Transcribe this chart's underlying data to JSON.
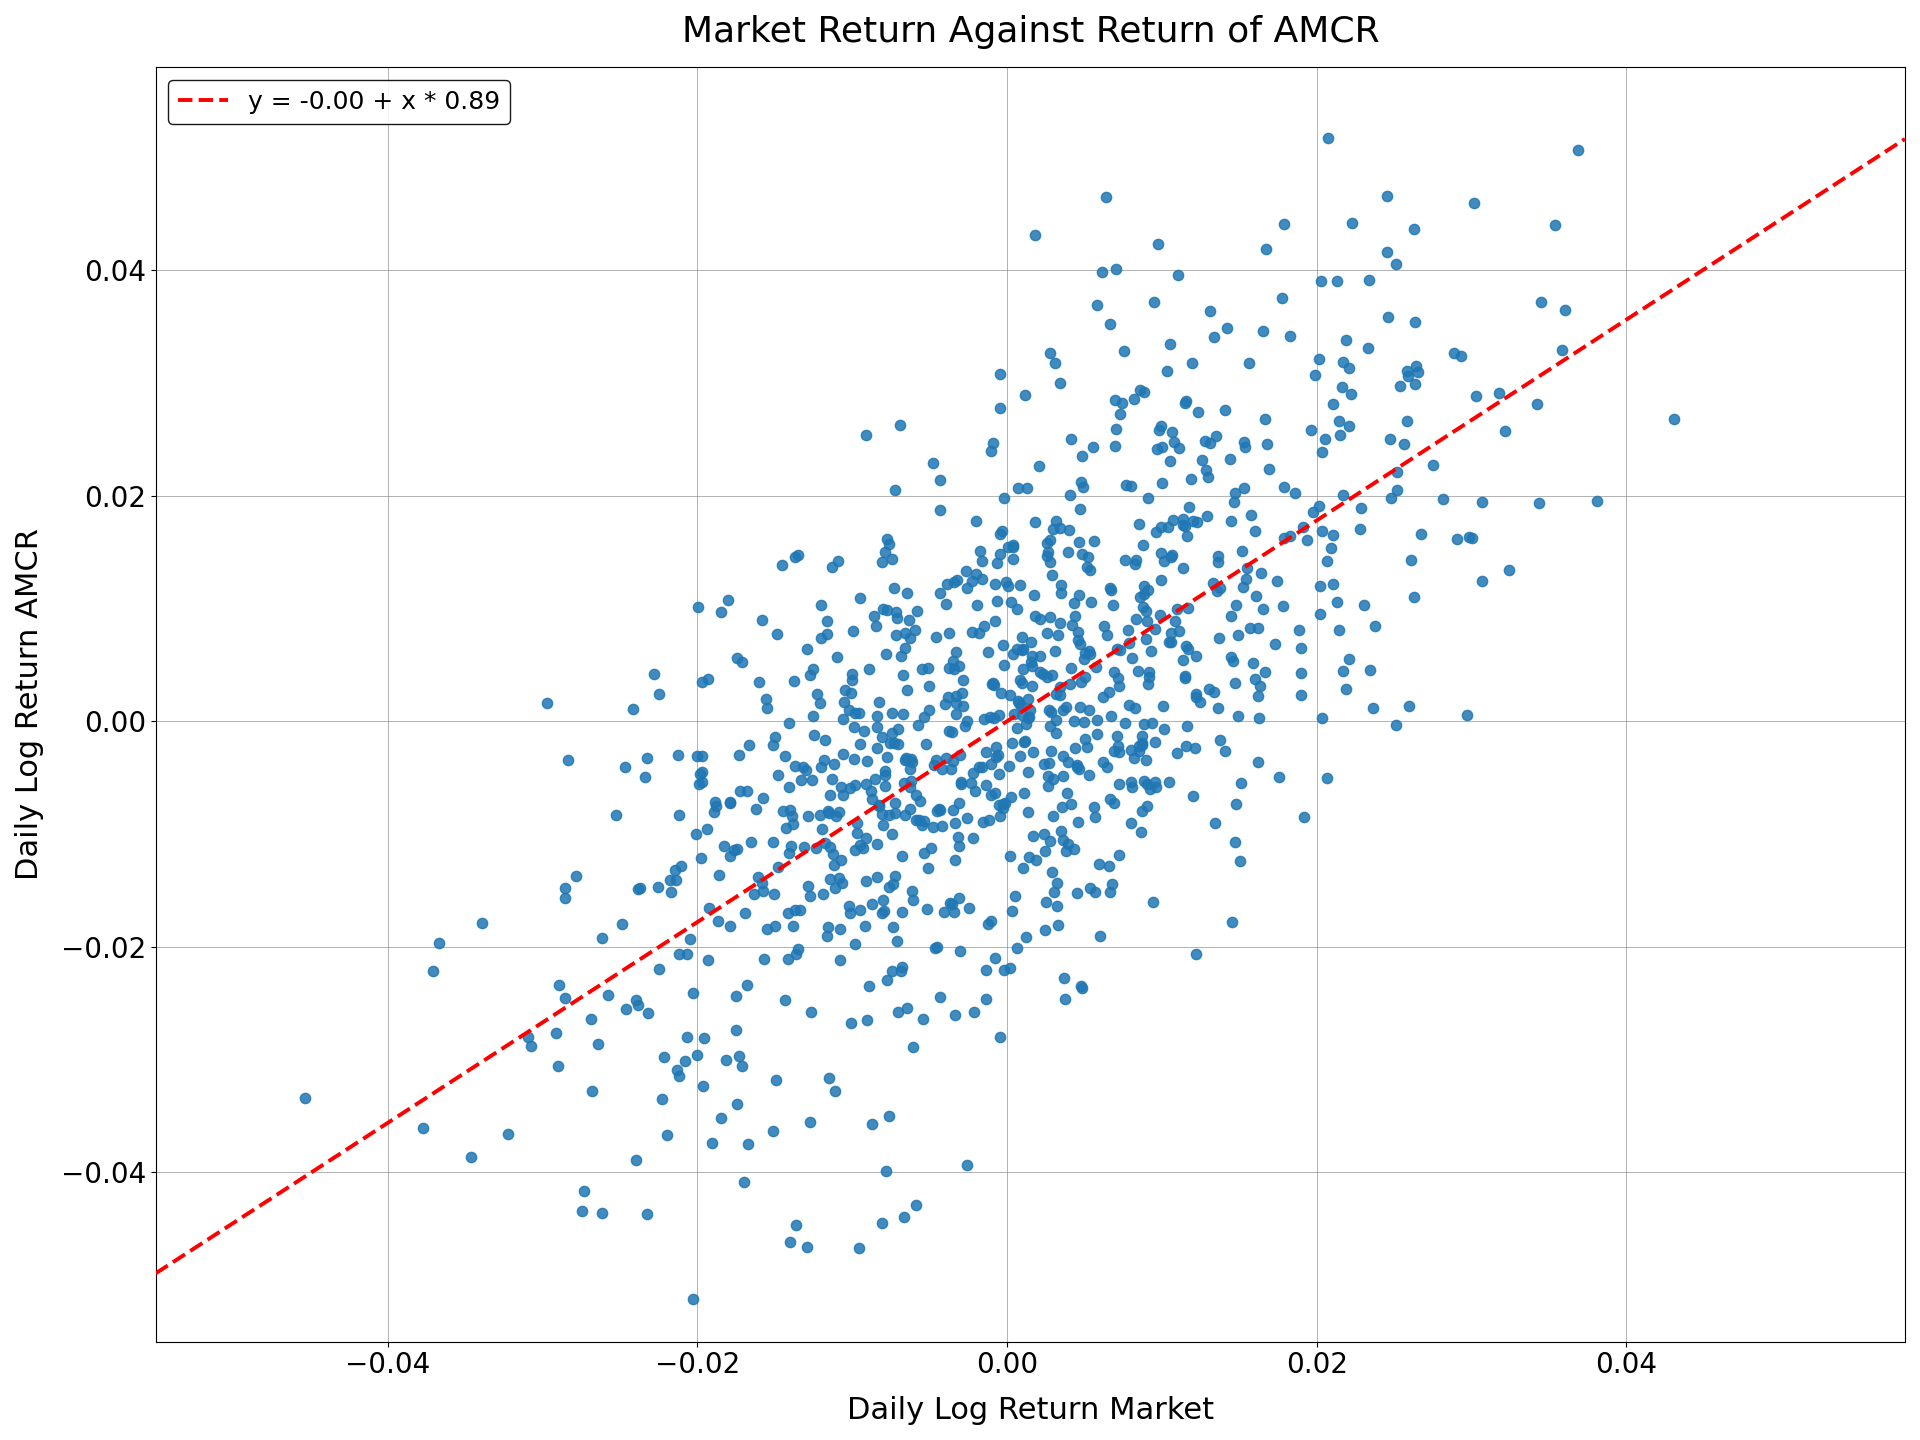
{
  "title": "Market Return Against Return of AMCR",
  "xlabel": "Daily Log Return Market",
  "ylabel": "Daily Log Return AMCR",
  "legend_label": "y = -0.00 + x * 0.89",
  "scatter_color": "#1f77b4",
  "line_color": "#ff0000",
  "intercept": -0.0,
  "slope": 0.89,
  "xlim": [
    -0.055,
    0.058
  ],
  "ylim": [
    -0.055,
    0.058
  ],
  "xticks": [
    -0.04,
    -0.02,
    0.0,
    0.02,
    0.04
  ],
  "yticks": [
    -0.04,
    -0.02,
    0.0,
    0.02,
    0.04
  ],
  "n_points": 1000,
  "random_seed": 42,
  "market_std": 0.014,
  "noise_std": 0.013,
  "title_fontsize": 26,
  "label_fontsize": 22,
  "tick_fontsize": 20,
  "legend_fontsize": 18,
  "marker_size": 55,
  "line_width": 2.8,
  "figwidth": 19.2,
  "figheight": 14.4,
  "dpi": 100
}
